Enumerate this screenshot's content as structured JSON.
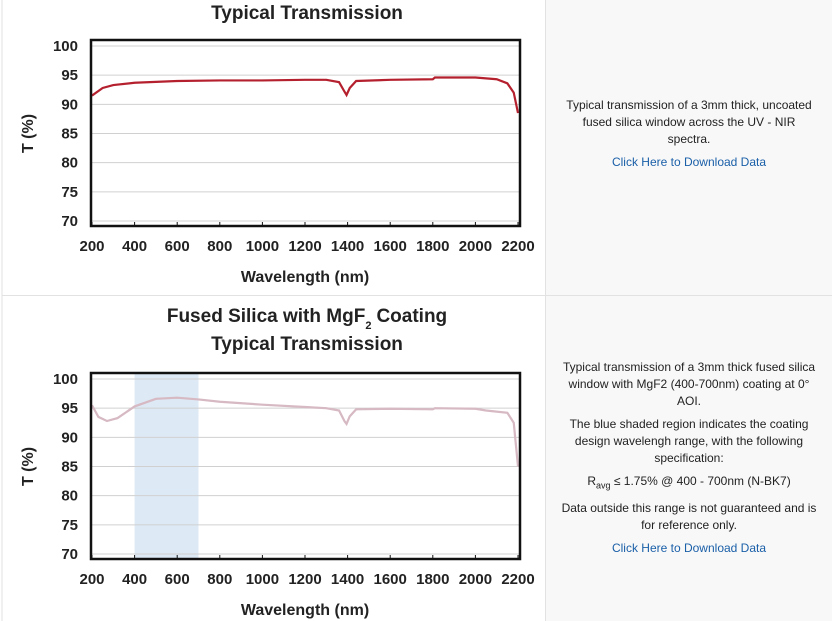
{
  "chart_data": [
    {
      "type": "line",
      "title": "Typical Transmission",
      "ylabel": "T (%)",
      "xlabel": "Wavelength (nm)",
      "x": [
        200,
        250,
        300,
        400,
        600,
        800,
        1000,
        1200,
        1300,
        1360,
        1385,
        1395,
        1410,
        1440,
        1600,
        1800,
        1810,
        2000,
        2100,
        2150,
        2180,
        2200
      ],
      "series": [
        {
          "color": "#b5202e",
          "values": [
            91.5,
            92.8,
            93.3,
            93.7,
            94.0,
            94.1,
            94.1,
            94.2,
            94.2,
            93.8,
            92.2,
            91.6,
            92.8,
            94.0,
            94.2,
            94.3,
            94.6,
            94.6,
            94.3,
            93.6,
            92.0,
            88.5
          ]
        }
      ],
      "xlim": [
        200,
        2200
      ],
      "ylim": [
        70,
        100
      ],
      "xticks": [
        200,
        400,
        600,
        800,
        1000,
        1200,
        1400,
        1600,
        1800,
        2000,
        2200
      ],
      "yticks": [
        70,
        75,
        80,
        85,
        90,
        95,
        100
      ],
      "grid": true
    },
    {
      "type": "line",
      "title": {
        "main": "Fused Silica with MgF",
        "sub": "2",
        "rest": "Coating"
      },
      "subtitle": "Typical Transmission",
      "ylabel": "T (%)",
      "xlabel": "Wavelength (nm)",
      "x": [
        200,
        230,
        270,
        320,
        400,
        500,
        600,
        700,
        800,
        1000,
        1200,
        1300,
        1360,
        1385,
        1395,
        1410,
        1440,
        1600,
        1800,
        1810,
        2000,
        2050,
        2150,
        2180,
        2200
      ],
      "series": [
        {
          "color": "#d6b9c2",
          "values": [
            95.5,
            93.5,
            92.8,
            93.3,
            95.3,
            96.6,
            96.8,
            96.5,
            96.1,
            95.6,
            95.2,
            95.0,
            94.6,
            92.8,
            92.3,
            93.6,
            94.8,
            94.9,
            94.8,
            95.0,
            94.9,
            94.6,
            94.2,
            92.5,
            85.0
          ]
        }
      ],
      "shaded_range": [
        400,
        700
      ],
      "shade_color": "#dde9f5",
      "xlim": [
        200,
        2200
      ],
      "ylim": [
        70,
        100
      ],
      "xticks": [
        200,
        400,
        600,
        800,
        1000,
        1200,
        1400,
        1600,
        1800,
        2000,
        2200
      ],
      "yticks": [
        70,
        75,
        80,
        85,
        90,
        95,
        100
      ],
      "grid": true
    }
  ],
  "descriptions": [
    {
      "text": "Typical transmission of a 3mm thick, uncoated fused silica window across the UV - NIR spectra.",
      "link": "Click Here to Download Data"
    },
    {
      "paragraphs": [
        "Typical transmission of a 3mm thick fused silica window with MgF2 (400-700nm) coating at 0° AOI.",
        "The blue shaded region indicates the coating design wavelengh range, with the following specification:"
      ],
      "spec": {
        "symbol": "R",
        "sub": "avg",
        "text": "≤ 1.75% @ 400 - 700nm (N-BK7)"
      },
      "note": "Data outside this range is not guaranteed and is for reference only.",
      "link": "Click Here to Download Data"
    }
  ]
}
